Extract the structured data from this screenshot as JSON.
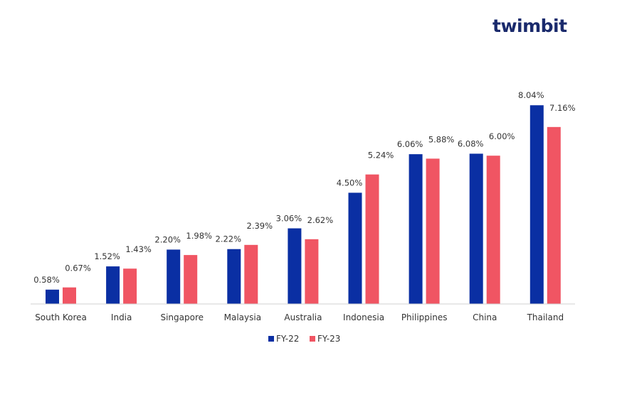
{
  "brand": {
    "name": "twimbit",
    "color": "#1a2a6c",
    "accent": "#e8505b"
  },
  "chart_data": {
    "type": "bar",
    "title": "",
    "xlabel": "",
    "ylabel": "",
    "ylim": [
      0,
      10
    ],
    "grid": false,
    "legend_position": "bottom",
    "value_suffix": "%",
    "categories": [
      "South Korea",
      "India",
      "Singapore",
      "Malaysia",
      "Australia",
      "Indonesia",
      "Philippines",
      "China",
      "Thailand"
    ],
    "series": [
      {
        "name": "FY-22",
        "color": "#0a2fa3",
        "values": [
          0.58,
          1.52,
          2.2,
          2.22,
          3.06,
          4.5,
          6.06,
          6.08,
          8.04
        ]
      },
      {
        "name": "FY-23",
        "color": "#f05563",
        "values": [
          0.67,
          1.43,
          1.98,
          2.39,
          2.62,
          5.24,
          5.88,
          6.0,
          7.16
        ]
      }
    ]
  }
}
